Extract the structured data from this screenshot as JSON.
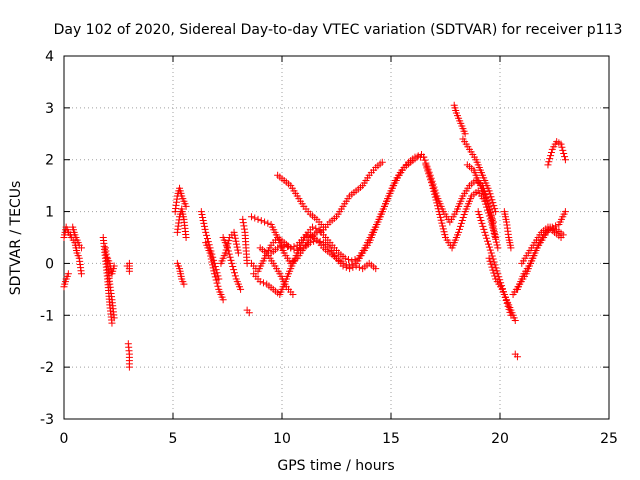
{
  "chart_data": {
    "type": "scatter",
    "title": "Day 102 of 2020, Sidereal Day-to-day VTEC variation (SDTVAR) for receiver p113",
    "xlabel": "GPS time / hours",
    "ylabel": "SDTVAR / TECUs",
    "xlim": [
      0,
      25
    ],
    "ylim": [
      -3,
      4
    ],
    "xticks": [
      0,
      5,
      10,
      15,
      20,
      25
    ],
    "yticks": [
      -3,
      -2,
      -1,
      0,
      1,
      2,
      3,
      4
    ],
    "xtick_labels": [
      "0",
      "5",
      "10",
      "15",
      "20",
      "25"
    ],
    "ytick_labels": [
      "-3",
      "-2",
      "-1",
      "0",
      "1",
      "2",
      "3",
      "4"
    ],
    "grid": true,
    "marker": "+",
    "color": "#ff0000",
    "segments": [
      {
        "x": [
          0.0,
          0.1,
          0.2,
          0.3
        ],
        "y": [
          0.5,
          0.7,
          0.6,
          0.55
        ]
      },
      {
        "x": [
          0.0,
          0.1,
          0.2
        ],
        "y": [
          -0.45,
          -0.3,
          -0.2
        ]
      },
      {
        "x": [
          0.2,
          0.35,
          0.5,
          0.6,
          0.7,
          0.8
        ],
        "y": [
          0.6,
          0.5,
          0.4,
          0.2,
          0.1,
          -0.2
        ]
      },
      {
        "x": [
          0.4,
          0.5,
          0.6,
          0.7,
          0.8
        ],
        "y": [
          0.7,
          0.55,
          0.45,
          0.35,
          0.3
        ]
      },
      {
        "x": [
          1.8,
          1.9,
          2.0,
          2.1,
          2.2
        ],
        "y": [
          0.5,
          0.1,
          -0.3,
          -0.8,
          -1.15
        ]
      },
      {
        "x": [
          1.9,
          2.0,
          2.1,
          2.2,
          2.3
        ],
        "y": [
          0.3,
          0.0,
          -0.4,
          -0.7,
          -1.05
        ]
      },
      {
        "x": [
          2.0,
          2.1,
          2.2,
          2.3
        ],
        "y": [
          0.1,
          0.0,
          -0.2,
          -0.05
        ]
      },
      {
        "x": [
          2.9,
          3.0,
          3.0
        ],
        "y": [
          -0.05,
          0.0,
          -0.15
        ]
      },
      {
        "x": [
          2.95,
          3.0,
          3.0
        ],
        "y": [
          -1.55,
          -1.75,
          -2.0
        ]
      },
      {
        "x": [
          5.1,
          5.2,
          5.3,
          5.4,
          5.5,
          5.6
        ],
        "y": [
          1.0,
          1.3,
          1.45,
          1.3,
          1.2,
          1.1
        ]
      },
      {
        "x": [
          5.2,
          5.3,
          5.4,
          5.5,
          5.6
        ],
        "y": [
          0.6,
          0.9,
          1.05,
          0.85,
          0.5
        ]
      },
      {
        "x": [
          5.2,
          5.3,
          5.4,
          5.5
        ],
        "y": [
          0.0,
          -0.1,
          -0.3,
          -0.4
        ]
      },
      {
        "x": [
          6.3,
          6.5,
          6.7,
          6.9,
          7.1
        ],
        "y": [
          1.0,
          0.6,
          0.3,
          0.0,
          -0.3
        ]
      },
      {
        "x": [
          6.5,
          6.7,
          6.9,
          7.1,
          7.3
        ],
        "y": [
          0.4,
          0.2,
          -0.2,
          -0.5,
          -0.7
        ]
      },
      {
        "x": [
          7.2,
          7.4,
          7.6,
          7.8,
          8.0
        ],
        "y": [
          0.0,
          0.2,
          0.5,
          0.6,
          0.2
        ]
      },
      {
        "x": [
          7.3,
          7.5,
          7.7,
          7.9,
          8.1
        ],
        "y": [
          0.5,
          0.3,
          0.0,
          -0.3,
          -0.5
        ]
      },
      {
        "x": [
          8.2,
          8.3,
          8.4
        ],
        "y": [
          0.85,
          0.6,
          0.0
        ]
      },
      {
        "x": [
          8.4,
          8.5
        ],
        "y": [
          -0.9,
          -0.95
        ]
      },
      {
        "x": [
          8.6,
          8.9,
          9.2,
          9.5,
          9.8,
          10.1,
          10.4,
          10.7,
          11.0,
          11.3,
          11.6,
          11.9,
          12.2,
          12.5,
          12.8,
          13.1,
          13.4,
          13.7,
          14.0,
          14.3,
          14.6
        ],
        "y": [
          0.9,
          0.85,
          0.8,
          0.75,
          0.5,
          0.2,
          0.0,
          0.1,
          0.3,
          0.5,
          0.6,
          0.65,
          0.8,
          0.9,
          1.1,
          1.3,
          1.4,
          1.5,
          1.7,
          1.85,
          1.95
        ]
      },
      {
        "x": [
          8.6,
          8.9,
          9.2,
          9.5,
          9.8,
          10.1,
          10.4,
          10.7,
          11.0,
          11.3,
          11.6,
          11.9,
          12.2,
          12.5,
          12.8,
          13.1,
          13.4,
          13.7,
          14.0,
          14.3,
          14.6,
          14.9,
          15.2,
          15.5,
          15.8,
          16.1,
          16.4
        ],
        "y": [
          0.0,
          -0.15,
          0.1,
          0.35,
          0.5,
          0.4,
          0.3,
          0.35,
          0.5,
          0.55,
          0.45,
          0.3,
          0.2,
          0.1,
          0.0,
          -0.05,
          0.0,
          0.2,
          0.4,
          0.7,
          1.0,
          1.3,
          1.6,
          1.8,
          1.95,
          2.05,
          2.1
        ]
      },
      {
        "x": [
          8.7,
          9.0,
          9.3,
          9.6,
          9.9,
          10.2,
          10.5,
          10.8,
          11.1,
          11.4,
          11.7,
          12.0,
          12.3,
          12.6,
          12.9,
          13.2,
          13.5,
          13.8,
          14.1,
          14.4,
          14.7,
          15.0,
          15.3,
          15.6,
          15.9,
          16.2,
          16.5
        ],
        "y": [
          -0.2,
          -0.35,
          -0.4,
          -0.5,
          -0.6,
          -0.3,
          0.0,
          0.3,
          0.55,
          0.7,
          0.65,
          0.5,
          0.35,
          0.2,
          0.1,
          0.05,
          0.1,
          0.3,
          0.55,
          0.8,
          1.1,
          1.4,
          1.65,
          1.85,
          1.95,
          2.05,
          2.05
        ]
      },
      {
        "x": [
          9.0,
          9.3,
          9.6,
          9.9,
          10.2,
          10.5
        ],
        "y": [
          0.3,
          0.2,
          0.0,
          -0.2,
          -0.45,
          -0.6
        ]
      },
      {
        "x": [
          9.5,
          9.8,
          10.1,
          10.4,
          10.7,
          11.0,
          11.3,
          11.6,
          11.9,
          12.2,
          12.5,
          12.8,
          13.1,
          13.4,
          13.7,
          14.0,
          14.3
        ],
        "y": [
          0.2,
          0.3,
          0.35,
          0.3,
          0.25,
          0.3,
          0.4,
          0.45,
          0.4,
          0.3,
          0.1,
          -0.05,
          -0.1,
          -0.05,
          -0.1,
          0.0,
          -0.1
        ]
      },
      {
        "x": [
          9.8,
          10.1,
          10.4,
          10.7,
          11.0,
          11.3,
          11.6,
          11.9
        ],
        "y": [
          1.7,
          1.6,
          1.5,
          1.3,
          1.1,
          0.95,
          0.85,
          0.7
        ]
      },
      {
        "x": [
          16.5,
          16.8,
          17.1,
          17.4,
          17.7,
          18.0,
          18.3,
          18.6,
          18.9,
          19.2,
          19.5,
          19.8
        ],
        "y": [
          2.05,
          1.7,
          1.3,
          1.0,
          0.8,
          1.0,
          1.3,
          1.5,
          1.6,
          1.5,
          1.1,
          0.5
        ]
      },
      {
        "x": [
          16.6,
          16.9,
          17.2,
          17.5,
          17.8,
          18.1,
          18.4,
          18.7,
          19.0,
          19.3,
          19.6,
          19.9
        ],
        "y": [
          1.9,
          1.5,
          1.0,
          0.5,
          0.3,
          0.6,
          1.0,
          1.3,
          1.4,
          1.2,
          0.8,
          0.3
        ]
      },
      {
        "x": [
          17.9,
          18.0,
          18.1,
          18.2,
          18.3,
          18.4
        ],
        "y": [
          3.05,
          2.9,
          2.8,
          2.7,
          2.6,
          2.5
        ]
      },
      {
        "x": [
          18.3,
          18.6,
          18.9,
          19.2,
          19.5,
          19.8
        ],
        "y": [
          2.4,
          2.2,
          2.0,
          1.7,
          1.4,
          1.0
        ]
      },
      {
        "x": [
          18.5,
          18.8,
          19.1,
          19.4,
          19.7
        ],
        "y": [
          1.9,
          1.8,
          1.5,
          1.2,
          0.8
        ]
      },
      {
        "x": [
          19.0,
          19.3,
          19.6,
          19.9,
          20.2,
          20.5
        ],
        "y": [
          1.0,
          0.6,
          0.2,
          -0.2,
          -0.6,
          -1.0
        ]
      },
      {
        "x": [
          19.5,
          19.8,
          20.1,
          20.4,
          20.7
        ],
        "y": [
          0.1,
          -0.3,
          -0.5,
          -0.8,
          -1.1
        ]
      },
      {
        "x": [
          20.2,
          20.3,
          20.4,
          20.5
        ],
        "y": [
          1.0,
          0.8,
          0.5,
          0.3
        ]
      },
      {
        "x": [
          20.7,
          20.8
        ],
        "y": [
          -1.75,
          -1.8
        ]
      },
      {
        "x": [
          20.6,
          20.9,
          21.2,
          21.5,
          21.8,
          22.1,
          22.4,
          22.7,
          23.0
        ],
        "y": [
          -0.6,
          -0.4,
          -0.2,
          0.1,
          0.4,
          0.6,
          0.7,
          0.75,
          1.0
        ]
      },
      {
        "x": [
          20.8,
          21.1,
          21.4,
          21.7,
          22.0,
          22.3,
          22.6,
          22.9
        ],
        "y": [
          -0.5,
          -0.2,
          0.0,
          0.3,
          0.5,
          0.7,
          0.65,
          0.55
        ]
      },
      {
        "x": [
          21.0,
          21.3,
          21.6,
          21.9,
          22.2,
          22.5,
          22.8
        ],
        "y": [
          0.0,
          0.2,
          0.4,
          0.6,
          0.7,
          0.6,
          0.5
        ]
      },
      {
        "x": [
          22.2,
          22.4,
          22.6,
          22.8,
          23.0
        ],
        "y": [
          1.9,
          2.2,
          2.35,
          2.3,
          2.0
        ]
      }
    ]
  }
}
